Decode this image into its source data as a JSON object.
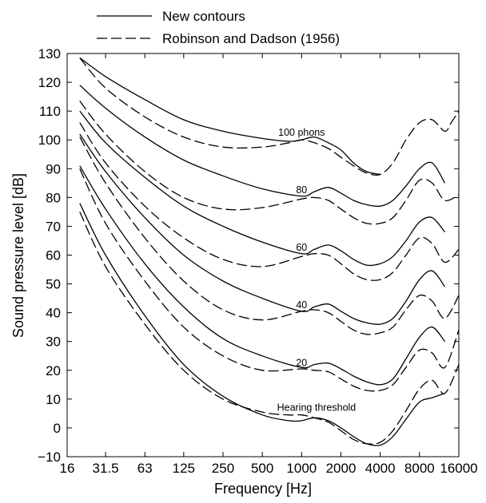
{
  "chart_data": {
    "type": "line",
    "xlabel": "Frequency [Hz]",
    "ylabel": "Sound pressure level [dB]",
    "x_scale": "log",
    "xlim": [
      16,
      16000
    ],
    "ylim": [
      -10,
      130
    ],
    "x_ticks": [
      {
        "value": 16,
        "label": "16"
      },
      {
        "value": 31.5,
        "label": "31.5"
      },
      {
        "value": 63,
        "label": "63"
      },
      {
        "value": 125,
        "label": "125"
      },
      {
        "value": 250,
        "label": "250"
      },
      {
        "value": 500,
        "label": "500"
      },
      {
        "value": 1000,
        "label": "1000"
      },
      {
        "value": 2000,
        "label": "2000"
      },
      {
        "value": 4000,
        "label": "4000"
      },
      {
        "value": 8000,
        "label": "8000"
      },
      {
        "value": 16000,
        "label": "16000"
      }
    ],
    "y_ticks": [
      -10,
      0,
      10,
      20,
      30,
      40,
      50,
      60,
      70,
      80,
      90,
      100,
      110,
      120,
      130
    ],
    "y_tick_labels": [
      "−10",
      "0",
      "10",
      "20",
      "30",
      "40",
      "50",
      "60",
      "70",
      "80",
      "90",
      "100",
      "110",
      "120",
      "130"
    ],
    "grid": false,
    "legend": {
      "placement": "top-left",
      "entries": [
        {
          "label": "New contours",
          "style": "solid"
        },
        {
          "label": "Robinson and Dadson (1956)",
          "style": "dashed"
        }
      ]
    },
    "annotations": [
      {
        "text": "100 phons",
        "x": 1000,
        "y": 101.5
      },
      {
        "text": "80",
        "x": 1000,
        "y": 81.5
      },
      {
        "text": "60",
        "x": 1000,
        "y": 61.5
      },
      {
        "text": "40",
        "x": 1000,
        "y": 41.5
      },
      {
        "text": "20",
        "x": 1000,
        "y": 21.5
      },
      {
        "text": "Hearing threshold",
        "x": 1300,
        "y": 6
      }
    ],
    "series": [
      {
        "style": "solid",
        "x": [
          20,
          31.5,
          63,
          125,
          250,
          500,
          800,
          1000,
          1250,
          1600,
          2000,
          2500,
          3150,
          4000
        ],
        "y": [
          128.5,
          122,
          114,
          107,
          103,
          100.5,
          99.5,
          100,
          101,
          99,
          96.5,
          92,
          89,
          88
        ]
      },
      {
        "style": "solid",
        "x": [
          20,
          31.5,
          63,
          125,
          250,
          500,
          1000,
          1250,
          1600,
          2000,
          2500,
          3150,
          4000,
          5000,
          6300,
          8000,
          10000,
          12500
        ],
        "y": [
          119,
          111,
          101,
          93,
          87.5,
          83,
          80.5,
          82,
          83.5,
          81.5,
          79,
          77.5,
          77,
          79,
          84,
          90,
          92,
          85
        ]
      },
      {
        "style": "solid",
        "x": [
          20,
          31.5,
          63,
          125,
          250,
          500,
          1000,
          1250,
          1600,
          2000,
          2500,
          3150,
          4000,
          5000,
          6300,
          8000,
          10000,
          12500
        ],
        "y": [
          110,
          99,
          87,
          77,
          70,
          64.5,
          60.5,
          62,
          63.5,
          61.5,
          58.5,
          56.5,
          57,
          59.5,
          65,
          71.5,
          73,
          68
        ]
      },
      {
        "style": "solid",
        "x": [
          20,
          31.5,
          63,
          125,
          250,
          500,
          1000,
          1250,
          1600,
          2000,
          2500,
          3150,
          4000,
          5000,
          6300,
          8000,
          10000,
          12500
        ],
        "y": [
          102,
          89,
          73,
          60,
          51,
          45,
          40.5,
          42,
          43,
          40.5,
          38,
          36.5,
          36,
          38,
          44,
          51.5,
          54.5,
          49
        ]
      },
      {
        "style": "solid",
        "x": [
          20,
          31.5,
          63,
          125,
          250,
          500,
          1000,
          1250,
          1600,
          2000,
          2500,
          3150,
          4000,
          5000,
          6300,
          8000,
          10000,
          12500
        ],
        "y": [
          91,
          76,
          57,
          42,
          31,
          25,
          21,
          22,
          22.5,
          20.5,
          18,
          16,
          15,
          17,
          24,
          31.5,
          35,
          30
        ]
      },
      {
        "style": "solid",
        "x": [
          20,
          31.5,
          63,
          125,
          250,
          500,
          800,
          1000,
          1250,
          1600,
          2000,
          2500,
          3150,
          4000,
          5000,
          6300,
          8000,
          10000,
          12500
        ],
        "y": [
          78,
          60,
          39,
          22,
          11,
          4.5,
          2.5,
          2.5,
          3.5,
          2.5,
          0,
          -3,
          -5.5,
          -6,
          -3,
          3,
          9,
          10.5,
          12
        ]
      },
      {
        "style": "dashed",
        "x": [
          20,
          31.5,
          63,
          125,
          250,
          500,
          800,
          1000,
          1250,
          1600,
          2000,
          2500,
          3150,
          4000,
          5000,
          6300,
          8000,
          10000,
          12500,
          14000,
          16000
        ],
        "y": [
          128.5,
          118,
          108,
          101,
          97.5,
          97.5,
          99,
          100,
          99,
          97,
          94,
          91,
          88.5,
          88,
          92,
          100,
          106,
          107,
          103,
          106,
          110
        ]
      },
      {
        "style": "dashed",
        "x": [
          20,
          31.5,
          63,
          125,
          250,
          500,
          1000,
          1250,
          1600,
          2000,
          2500,
          3150,
          4000,
          5000,
          6300,
          8000,
          10000,
          12500,
          16000
        ],
        "y": [
          113.5,
          102,
          89,
          80,
          76,
          76.5,
          79.5,
          80,
          79,
          76,
          73,
          71,
          71,
          73,
          79,
          86,
          85,
          79,
          81
        ]
      },
      {
        "style": "dashed",
        "x": [
          20,
          31.5,
          63,
          125,
          250,
          500,
          1000,
          1250,
          1600,
          2000,
          2500,
          3150,
          4000,
          5000,
          6300,
          8000,
          10000,
          12500,
          16000
        ],
        "y": [
          106,
          92,
          77,
          66,
          58.5,
          56,
          59.5,
          60.5,
          60,
          57,
          53.5,
          51.5,
          51.5,
          54,
          60,
          66,
          64,
          57.5,
          62
        ]
      },
      {
        "style": "dashed",
        "x": [
          20,
          31.5,
          63,
          125,
          250,
          500,
          1000,
          1250,
          1600,
          2000,
          2500,
          3150,
          4000,
          5000,
          6300,
          8000,
          10000,
          12500,
          16000
        ],
        "y": [
          101,
          85,
          66,
          51,
          41,
          37.5,
          40.5,
          41,
          40,
          37,
          34,
          32.5,
          33,
          35,
          41,
          46,
          44,
          38,
          46
        ]
      },
      {
        "style": "dashed",
        "x": [
          20,
          31.5,
          63,
          125,
          250,
          500,
          1000,
          1250,
          1600,
          2000,
          2500,
          3150,
          4000,
          5000,
          6300,
          8000,
          10000,
          12500,
          16000
        ],
        "y": [
          90,
          71,
          51,
          35,
          25,
          20,
          20.5,
          20,
          19.5,
          17,
          14.5,
          13,
          13,
          15,
          21,
          27,
          26,
          21,
          34
        ]
      },
      {
        "style": "dashed",
        "x": [
          20,
          31.5,
          63,
          125,
          250,
          500,
          800,
          1000,
          1250,
          1600,
          2000,
          2500,
          3150,
          4000,
          5000,
          6300,
          8000,
          10000,
          12500,
          16000
        ],
        "y": [
          75,
          56,
          36,
          20,
          10,
          5.5,
          4.5,
          4.5,
          3.5,
          2,
          -1,
          -4,
          -5.5,
          -5,
          -1,
          6,
          13.5,
          16.5,
          12,
          22
        ]
      }
    ]
  }
}
